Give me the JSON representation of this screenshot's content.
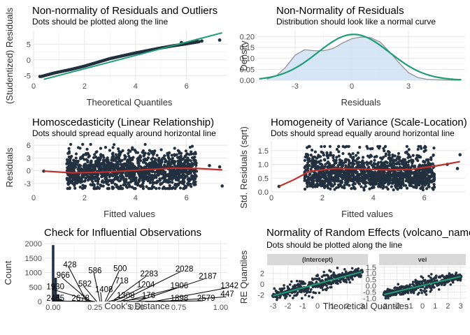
{
  "colors": {
    "points": "#22303f",
    "reference_line": "#1f9e76",
    "loess": "#c0302b",
    "density_fill": "#cfe2f3",
    "density_line": "#8c8c8c",
    "normal_curve": "#1f9e76",
    "strip_fill": "#d9d9d9"
  },
  "chart_data": [
    {
      "id": "qq",
      "type": "scatter",
      "title": "Non-normality of Residuals and Outliers",
      "subtitle": "Dots should be plotted along the line",
      "xlabel": "Theoretical Quantiles",
      "ylabel": "(Studentized) Residuals",
      "xlim": [
        0,
        7.6
      ],
      "ylim": [
        -6.5,
        9.5
      ],
      "xticks": [
        0,
        2,
        4,
        6
      ],
      "yticks": [
        -5,
        0,
        5
      ],
      "reference_line": [
        [
          0.4,
          -6.2
        ],
        [
          7.4,
          8.6
        ]
      ],
      "quantile_curve": [
        [
          0.3,
          -5.3
        ],
        [
          0.8,
          -4.2
        ],
        [
          1.5,
          -3.0
        ],
        [
          2.0,
          -2.0
        ],
        [
          2.5,
          -0.8
        ],
        [
          3.0,
          0.4
        ],
        [
          3.5,
          1.3
        ],
        [
          4.0,
          2.2
        ],
        [
          4.5,
          3.0
        ],
        [
          5.0,
          3.8
        ],
        [
          5.5,
          4.5
        ],
        [
          6.0,
          5.1
        ],
        [
          6.5,
          5.8
        ]
      ],
      "outliers": [
        [
          0.25,
          -5.3
        ],
        [
          5.8,
          5.5
        ],
        [
          6.2,
          5.6
        ],
        [
          6.4,
          6.2
        ],
        [
          6.6,
          6.0
        ],
        [
          7.3,
          6.3
        ]
      ]
    },
    {
      "id": "density",
      "type": "area",
      "title": "Non-Normality of Residuals",
      "subtitle": "Distribution should look like a normal curve",
      "xlabel": "Residuals",
      "ylabel": "Density",
      "xlim": [
        -5,
        6
      ],
      "ylim": [
        0,
        0.23
      ],
      "xticks": [
        -3,
        0,
        3
      ],
      "yticks": [
        0.0,
        0.05,
        0.1,
        0.15,
        0.2
      ],
      "ytick_labels": [
        "0.00",
        "0.05",
        "0.10",
        "0.15",
        "0.20"
      ],
      "density": [
        [
          -4.5,
          0.005
        ],
        [
          -4.0,
          0.02
        ],
        [
          -3.5,
          0.06
        ],
        [
          -3.0,
          0.115
        ],
        [
          -2.5,
          0.14
        ],
        [
          -2.0,
          0.135
        ],
        [
          -1.5,
          0.135
        ],
        [
          -1.0,
          0.145
        ],
        [
          -0.5,
          0.17
        ],
        [
          0.0,
          0.19
        ],
        [
          0.5,
          0.198
        ],
        [
          1.0,
          0.195
        ],
        [
          1.5,
          0.175
        ],
        [
          2.0,
          0.13
        ],
        [
          2.5,
          0.08
        ],
        [
          3.0,
          0.035
        ],
        [
          3.5,
          0.012
        ],
        [
          4.0,
          0.004
        ],
        [
          5.0,
          0.001
        ],
        [
          5.7,
          0.0
        ]
      ],
      "normal_mean": 0.1,
      "normal_sd": 1.9,
      "normal_range": [
        -4.9,
        5.8
      ]
    },
    {
      "id": "linearity",
      "type": "scatter",
      "title": "Homoscedasticity (Linear Relationship)",
      "subtitle": "Dots should spread equally around horizontal line",
      "xlabel": "Fitted values",
      "ylabel": "Residuals",
      "xlim": [
        0,
        7.6
      ],
      "ylim": [
        -5,
        7
      ],
      "xticks": [
        0,
        2,
        4,
        6
      ],
      "yticks": [
        -3,
        0,
        3,
        6
      ],
      "cloud_x": [
        1.3,
        6.4
      ],
      "cloud_y": [
        -4.2,
        6.2
      ],
      "extra_points": [
        [
          0.4,
          -0.1
        ],
        [
          6.9,
          1.2
        ],
        [
          7.4,
          -3.6
        ],
        [
          7.3,
          0.9
        ]
      ],
      "loess": [
        [
          0.4,
          -0.1
        ],
        [
          1.5,
          -0.5
        ],
        [
          2.5,
          -0.4
        ],
        [
          3.5,
          -0.1
        ],
        [
          4.5,
          0.3
        ],
        [
          5.5,
          0.6
        ],
        [
          6.5,
          0.5
        ],
        [
          7.4,
          0.2
        ]
      ]
    },
    {
      "id": "homogeneity",
      "type": "scatter",
      "title": "Homogeneity of Variance (Scale-Location)",
      "subtitle": "Dots should spread equally around horizontal line",
      "xlabel": "Fitted values",
      "ylabel": "Std. Residuals (sqrt)",
      "xlim": [
        0,
        7.6
      ],
      "ylim": [
        0,
        1.85
      ],
      "xticks": [
        0,
        2,
        4,
        6
      ],
      "yticks": [
        0.0,
        0.5,
        1.0,
        1.5
      ],
      "ytick_labels": [
        "0.0",
        "0.5",
        "1.0",
        "1.5"
      ],
      "cloud_x": [
        1.3,
        6.4
      ],
      "cloud_y": [
        0.05,
        1.65
      ],
      "extra_points": [
        [
          0.3,
          0.2
        ],
        [
          6.9,
          1.0
        ],
        [
          7.4,
          1.35
        ],
        [
          7.3,
          0.85
        ]
      ],
      "loess": [
        [
          0.3,
          0.2
        ],
        [
          0.9,
          0.45
        ],
        [
          1.5,
          0.75
        ],
        [
          2.5,
          0.85
        ],
        [
          3.5,
          0.83
        ],
        [
          4.5,
          0.8
        ],
        [
          5.5,
          0.82
        ],
        [
          6.5,
          0.95
        ],
        [
          7.4,
          1.1
        ]
      ]
    },
    {
      "id": "influence",
      "type": "bar",
      "title": "Check for Influential Observations",
      "subtitle": "",
      "xlabel": "Cook's Distance",
      "ylabel": "Count",
      "xlim": [
        -0.05,
        1.04
      ],
      "ylim": [
        0,
        2100
      ],
      "xticks": [
        0.0,
        0.25,
        0.5,
        0.75,
        1.0
      ],
      "xtick_labels": [
        "0.00",
        "0.25",
        "0.50",
        "0.75",
        "1.00"
      ],
      "yticks": [
        0,
        500,
        1000,
        1500,
        2000
      ],
      "ytick_labels": [
        "0",
        "500",
        "1000",
        "1500",
        "2000"
      ],
      "bars": [
        [
          0.0,
          1950
        ],
        [
          0.015,
          820
        ],
        [
          0.03,
          250
        ],
        [
          0.045,
          90
        ],
        [
          0.06,
          30
        ]
      ],
      "bar_width": 0.015,
      "labeled_points": [
        {
          "label": "428",
          "lx": 0.06,
          "ly": 1280,
          "px": 0.2,
          "py": 0
        },
        {
          "label": "966",
          "lx": 0.02,
          "ly": 920,
          "px": 0.22,
          "py": 0
        },
        {
          "label": "1930",
          "lx": -0.04,
          "ly": 520,
          "px": 0.24,
          "py": 0
        },
        {
          "label": "2465",
          "lx": -0.04,
          "ly": 120,
          "px": 0.23,
          "py": 0
        },
        {
          "label": "2678",
          "lx": 0.11,
          "ly": 120,
          "px": 0.25,
          "py": 0
        },
        {
          "label": "582",
          "lx": 0.15,
          "ly": 620,
          "px": 0.26,
          "py": 0
        },
        {
          "label": "586",
          "lx": 0.21,
          "ly": 1080,
          "px": 0.28,
          "py": 0
        },
        {
          "label": "1408",
          "lx": 0.25,
          "ly": 420,
          "px": 0.29,
          "py": 0
        },
        {
          "label": "500",
          "lx": 0.36,
          "ly": 1150,
          "px": 0.31,
          "py": 0
        },
        {
          "label": "718",
          "lx": 0.37,
          "ly": 720,
          "px": 0.32,
          "py": 0
        },
        {
          "label": "1308",
          "lx": 0.38,
          "ly": 220,
          "px": 0.33,
          "py": 0
        },
        {
          "label": "2283",
          "lx": 0.52,
          "ly": 960,
          "px": 0.35,
          "py": 0
        },
        {
          "label": "1204",
          "lx": 0.5,
          "ly": 590,
          "px": 0.36,
          "py": 0
        },
        {
          "label": "176",
          "lx": 0.53,
          "ly": 220,
          "px": 0.38,
          "py": 0
        },
        {
          "label": "2028",
          "lx": 0.73,
          "ly": 1140,
          "px": 0.4,
          "py": 0
        },
        {
          "label": "1906",
          "lx": 0.7,
          "ly": 560,
          "px": 0.42,
          "py": 0
        },
        {
          "label": "1898",
          "lx": 0.7,
          "ly": 120,
          "px": 0.44,
          "py": 0
        },
        {
          "label": "2187",
          "lx": 0.87,
          "ly": 880,
          "px": 0.5,
          "py": 0
        },
        {
          "label": "2579",
          "lx": 0.86,
          "ly": 120,
          "px": 0.55,
          "py": 0
        },
        {
          "label": "1342",
          "lx": 1.0,
          "ly": 560,
          "px": 0.6,
          "py": 0
        },
        {
          "label": "447",
          "lx": 1.0,
          "ly": 260,
          "px": 0.65,
          "py": 0
        }
      ]
    },
    {
      "id": "random_effects",
      "type": "scatter",
      "title": "Normality of Random Effects (volcano_name)",
      "subtitle": "Dots should be plotted along the line",
      "xlabel": "Theoretical Quantiles",
      "ylabel": "RE Quantiles",
      "xlim": [
        -3.4,
        3.4
      ],
      "xticks": [
        -3,
        -2,
        -1,
        0,
        1,
        2,
        3
      ],
      "panels": [
        {
          "strip": "(Intercept)",
          "ylim": [
            -3.0,
            3.4
          ],
          "yticks": [
            -2,
            0,
            2
          ],
          "line": [
            [
              -3,
              -2.2
            ],
            [
              3,
              2.3
            ]
          ],
          "spread": 0.9
        },
        {
          "strip": "vei",
          "ylim": [
            -1.15,
            1.6
          ],
          "yticks": [
            -1.0,
            -0.5,
            0.0,
            0.5,
            1.0,
            1.5
          ],
          "ytick_labels": [
            "-1.0",
            "-0.5",
            "0.0",
            "0.5",
            "1.0",
            "1.5"
          ],
          "line": [
            [
              -3,
              -0.7
            ],
            [
              3,
              0.75
            ]
          ],
          "spread": 0.35
        }
      ]
    }
  ]
}
